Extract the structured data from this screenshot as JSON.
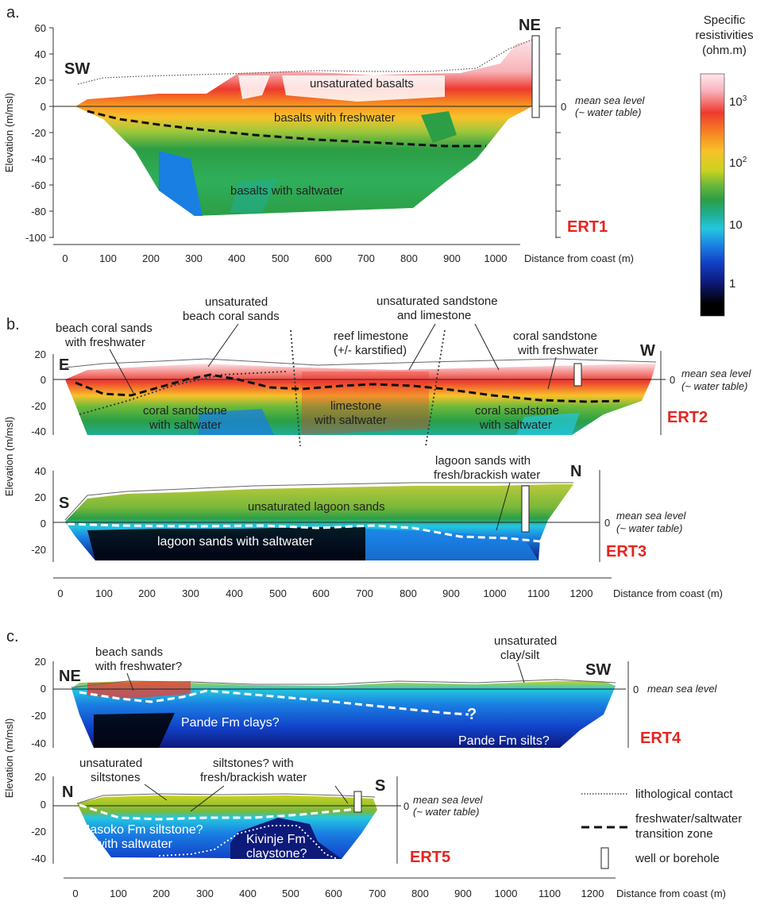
{
  "panels": {
    "a": {
      "letter": "a.",
      "ert": "ERT1",
      "ylabel": "Elevation (m/msl)",
      "yticks": [
        "60",
        "40",
        "20",
        "0",
        "-20",
        "-40",
        "-60",
        "-80",
        "-100"
      ],
      "xticks": [
        "0",
        "100",
        "200",
        "300",
        "400",
        "500",
        "600",
        "700",
        "800",
        "900",
        "1000"
      ],
      "xlabel": "Distance from coast (m)",
      "dir_left": "SW",
      "dir_right": "NE",
      "zero": "0",
      "msl_line1": "mean sea level",
      "msl_line2": "(~ water table)",
      "labels": [
        "unsaturated basalts",
        "basalts with freshwater",
        "basalts with saltwater"
      ]
    },
    "b": {
      "letter": "b.",
      "ert2": "ERT2",
      "ert3": "ERT3",
      "ylabel": "Elevation (m/msl)",
      "yticks2": [
        "20",
        "0",
        "-20",
        "-40"
      ],
      "yticks3": [
        "40",
        "20",
        "0",
        "-20"
      ],
      "xticks": [
        "0",
        "100",
        "200",
        "300",
        "400",
        "500",
        "600",
        "700",
        "800",
        "900",
        "1000",
        "1100",
        "1200"
      ],
      "xlabel": "Distance from coast (m)",
      "e": "E",
      "w": "W",
      "s": "S",
      "n": "N",
      "zero": "0",
      "msl_line1": "mean sea level",
      "msl_line2": "(~ water table)",
      "l_beach1": "beach coral sands",
      "l_beach2": "with freshwater",
      "l_unsat1": "unsaturated",
      "l_unsat2": "beach coral sands",
      "l_reef1": "reef limestone",
      "l_reef2": "(+/- karstified)",
      "l_uss1": "unsaturated sandstone",
      "l_uss2": "and limestone",
      "l_cs1": "coral sandstone",
      "l_cs2": "with freshwater",
      "l_csw1": "coral sandstone",
      "l_csw2": "with saltwater",
      "l_lim1": "limestone",
      "l_lim2": "with saltwater",
      "l_csw3": "coral sandstone",
      "l_csw4": "with saltwater",
      "l_lag1": "lagoon sands with",
      "l_lag2": "fresh/brackish water",
      "l_unlag": "unsaturated lagoon sands",
      "l_lagsalt": "lagoon sands with saltwater"
    },
    "c": {
      "letter": "c.",
      "ert4": "ERT4",
      "ert5": "ERT5",
      "ylabel": "Elevation (m/msl)",
      "yticks": [
        "20",
        "0",
        "-20",
        "-40"
      ],
      "xticks": [
        "0",
        "100",
        "200",
        "300",
        "400",
        "500",
        "600",
        "700",
        "800",
        "900",
        "1000",
        "1100",
        "1200"
      ],
      "xlabel": "Distance from coast (m)",
      "ne": "NE",
      "sw": "SW",
      "n": "N",
      "s": "S",
      "zero": "0",
      "msl4": "mean sea level",
      "msl_line1": "mean sea level",
      "msl_line2": "(~ water table)",
      "l_bs1": "beach sands",
      "l_bs2": "with freshwater?",
      "l_uc1": "unsaturated",
      "l_uc2": "clay/silt",
      "l_pande": "Pande Fm clays?",
      "l_q": "?",
      "l_pandes": "Pande Fm silts?",
      "l_us1": "unsaturated",
      "l_us2": "siltstones",
      "l_sw1": "siltstones? with",
      "l_sw2": "fresh/brackish water",
      "l_mas1": "Masoko Fm siltstone?",
      "l_mas2": "with saltwater",
      "l_kiv1": "Kivinje Fm",
      "l_kiv2": "claystone?"
    }
  },
  "colorbar": {
    "title": [
      "Specific",
      "resistivities",
      "(ohm.m)"
    ],
    "ticks": [
      {
        "label": "10",
        "sup": "3"
      },
      {
        "label": "10",
        "sup": "2"
      },
      {
        "label": "10",
        "sup": ""
      },
      {
        "label": "1",
        "sup": ""
      }
    ],
    "colors": [
      "#ffe8ec",
      "#f9a9b4",
      "#ee3a2e",
      "#f78a22",
      "#f8c22a",
      "#d9d21e",
      "#7dc13a",
      "#2c9e45",
      "#1fae93",
      "#24c7e0",
      "#1a7fe2",
      "#1240c8",
      "#0d1a7a",
      "#000000"
    ]
  },
  "legend": {
    "items": [
      "lithological contact",
      "freshwater/saltwater",
      "transition zone",
      "well or borehole"
    ]
  }
}
